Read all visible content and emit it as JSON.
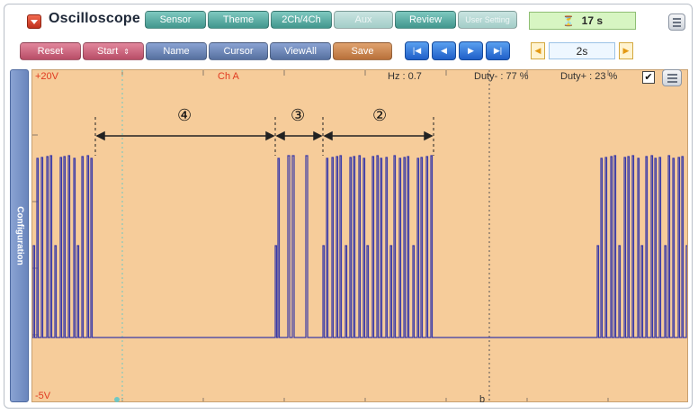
{
  "app": {
    "title": "Oscilloscope"
  },
  "toolbar_top": {
    "sensor": "Sensor",
    "theme": "Theme",
    "channels": "2Ch/4Ch",
    "aux": "Aux",
    "review": "Review",
    "user_setting": "User Setting"
  },
  "status": {
    "icon": "record-timer-icon",
    "value": "17 s"
  },
  "toolbar_bottom": {
    "reset": "Reset",
    "start": "Start",
    "name": "Name",
    "cursor": "Cursor",
    "viewall": "ViewAll",
    "save": "Save"
  },
  "nav_icons": [
    "skip-to-start-icon",
    "step-back-icon",
    "play-icon",
    "skip-to-end-icon"
  ],
  "timebase": {
    "value": "2s"
  },
  "sidebar": {
    "config_label": "Configuration"
  },
  "scope": {
    "top_voltage": "+20V",
    "bottom_voltage": "-5V",
    "channel": "Ch A",
    "hz": "Hz  : 0.7",
    "duty_minus": "Duty- : 77 %",
    "duty_plus": "Duty+ : 23 %",
    "cursor_label": "b",
    "checkbox": "✔",
    "annotations": [
      "④",
      "③",
      "②"
    ]
  },
  "colors": {
    "scope_bg": "#f6cc9a",
    "trace": "#3a3aa8",
    "voltage_label": "#e03a20"
  }
}
